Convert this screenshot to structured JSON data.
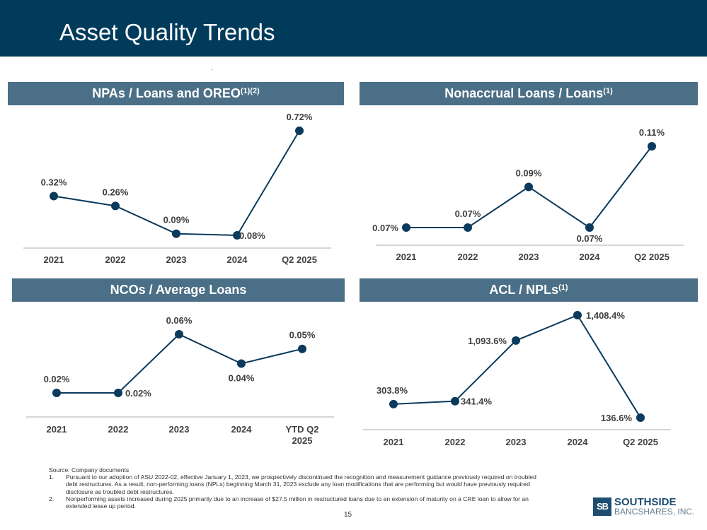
{
  "header": {
    "title": "Asset Quality Trends"
  },
  "chart_data": [
    {
      "type": "line",
      "title": "NPAs / Loans and OREO",
      "title_sup": "(1)(2)",
      "categories": [
        "2021",
        "2022",
        "2023",
        "2024",
        "Q2 2025"
      ],
      "values": [
        0.32,
        0.26,
        0.09,
        0.08,
        0.72
      ],
      "labels": [
        "0.32%",
        "0.26%",
        "0.09%",
        "0.08%",
        "0.72%"
      ],
      "color": "#0b3a5c"
    },
    {
      "type": "line",
      "title": "Nonaccrual Loans / Loans",
      "title_sup": "(1)",
      "categories": [
        "2021",
        "2022",
        "2023",
        "2024",
        "Q2 2025"
      ],
      "values": [
        0.07,
        0.07,
        0.09,
        0.07,
        0.11
      ],
      "labels": [
        "0.07%",
        "0.07%",
        "0.09%",
        "0.07%",
        "0.11%"
      ],
      "color": "#0b3a5c"
    },
    {
      "type": "line",
      "title": "NCOs / Average Loans",
      "title_sup": "",
      "categories": [
        "2021",
        "2022",
        "2023",
        "2024",
        "YTD Q2 2025"
      ],
      "values": [
        0.02,
        0.02,
        0.06,
        0.04,
        0.05
      ],
      "labels": [
        "0.02%",
        "0.02%",
        "0.06%",
        "0.04%",
        "0.05%"
      ],
      "color": "#0b3a5c"
    },
    {
      "type": "line",
      "title": "ACL / NPLs",
      "title_sup": "(1)",
      "categories": [
        "2021",
        "2022",
        "2023",
        "2024",
        "Q2 2025"
      ],
      "values": [
        303.8,
        341.4,
        1093.6,
        1408.4,
        136.6
      ],
      "labels": [
        "303.8%",
        "341.4%",
        "1,093.6%",
        "1,408.4%",
        "136.6%"
      ],
      "color": "#0b3a5c"
    }
  ],
  "footnotes": {
    "source": "Source: Company documents",
    "items": [
      {
        "num": "1.",
        "text": "Pursuant to our adoption of ASU 2022-02, effective January 1, 2023, we prospectively discontinued the recognition and measurement guidance previously required on troubled debt restructures. As a result, non-performing loans (NPLs)  beginning March 31, 2023 exclude any loan modifications that are performing but would have previously required disclosure as troubled debt restructures."
      },
      {
        "num": "2.",
        "text": "Nonperforming assets increased during 2025 primarily due to an increase of $27.5 million in restructured loans due to an extension of maturity on a CRE loan to allow for an extended lease up period."
      }
    ]
  },
  "page_number": "15",
  "logo": {
    "mark": "SB",
    "line1": "SOUTHSIDE",
    "line2": "BANCSHARES, INC."
  }
}
